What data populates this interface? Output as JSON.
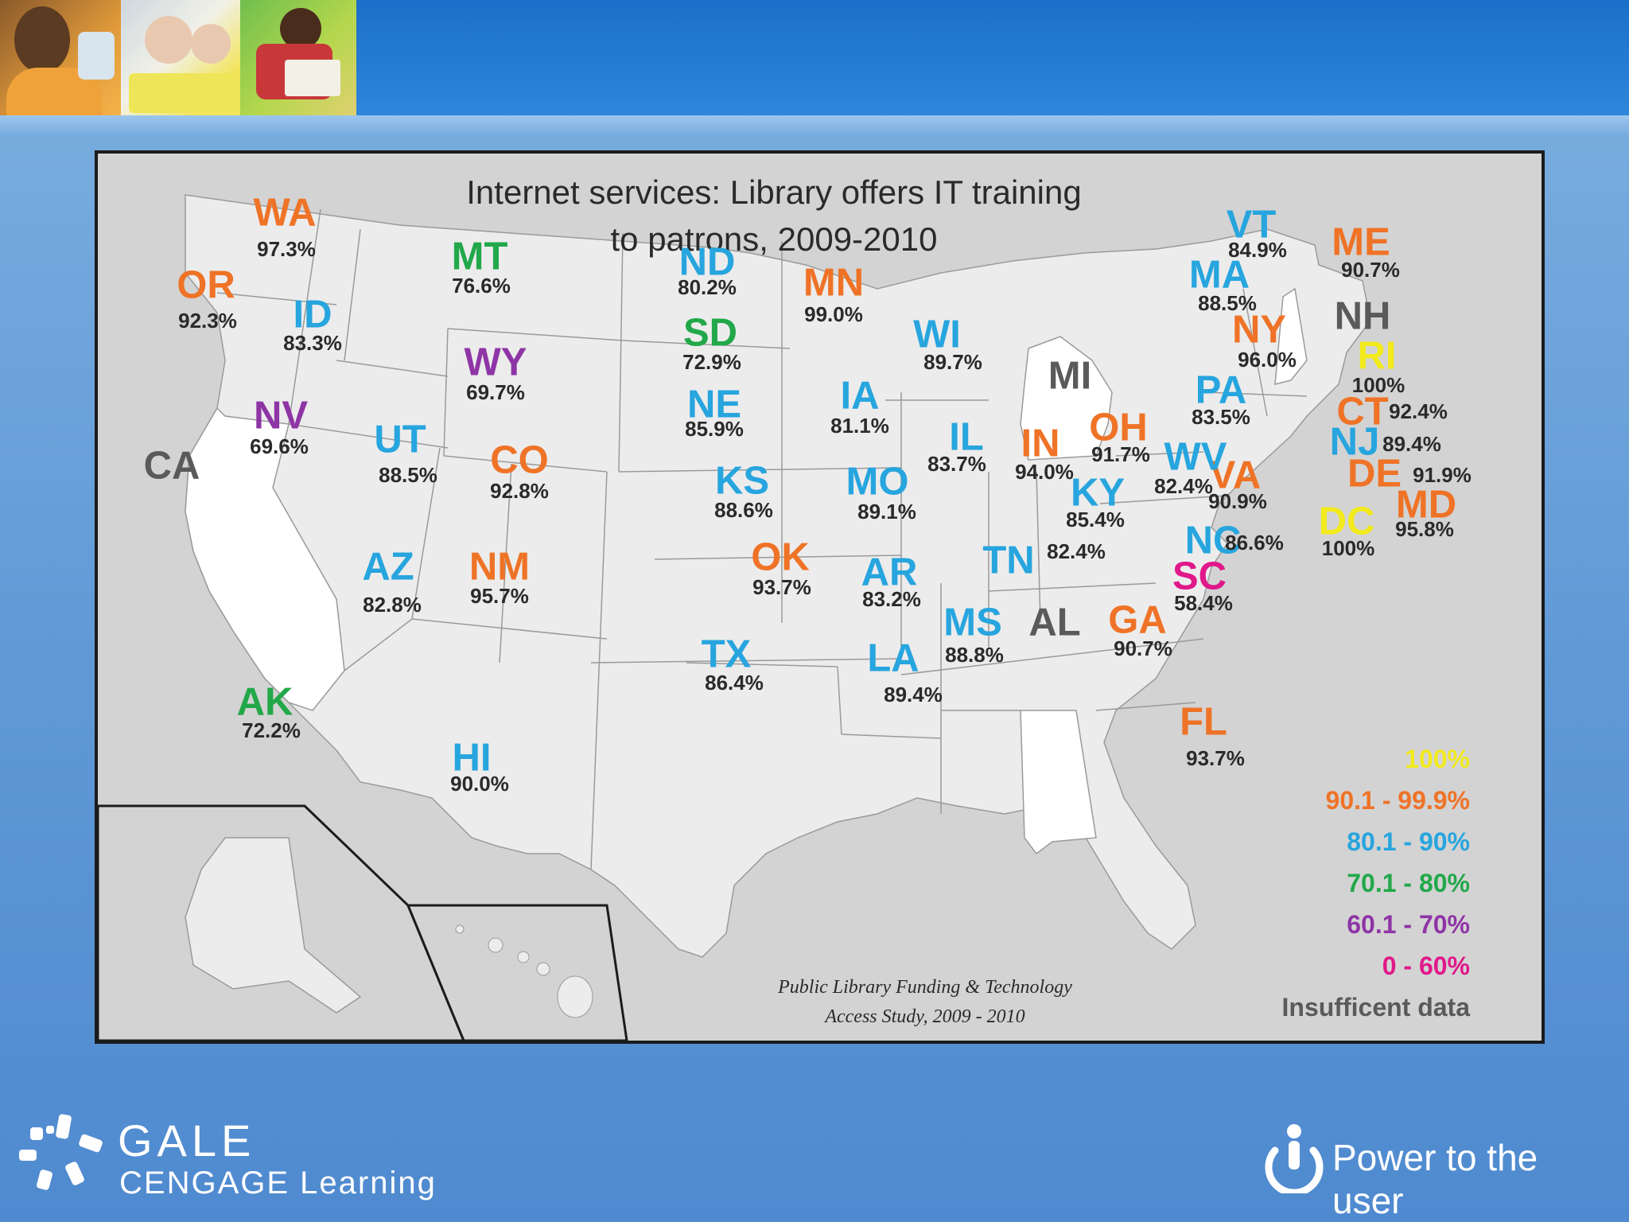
{
  "map": {
    "title_line1": "Internet services: Library offers IT training",
    "title_line2": "to patrons, 2009-2010",
    "source_line1": "Public Library Funding & Technology",
    "source_line2": "Access Study, 2009 - 2010"
  },
  "colors": {
    "band_100": "#f2ea1c",
    "band_90": "#ef7327",
    "band_80": "#27a5de",
    "band_70": "#22a84a",
    "band_60": "#8e35a6",
    "band_0": "#e0188a",
    "insufficient": "#5a5a5a"
  },
  "legend": [
    {
      "label": "100%",
      "color": "#f2ea1c"
    },
    {
      "label": "90.1 - 99.9%",
      "color": "#ef7327"
    },
    {
      "label": "80.1 - 90%",
      "color": "#27a5de"
    },
    {
      "label": "70.1 - 80%",
      "color": "#22a84a"
    },
    {
      "label": "60.1 - 70%",
      "color": "#8e35a6"
    },
    {
      "label": "0 - 60%",
      "color": "#e0188a"
    },
    {
      "label": "Insufficent data",
      "color": "#5a5a5a"
    }
  ],
  "states": [
    {
      "abbr": "WA",
      "value": "97.3%"
    },
    {
      "abbr": "OR",
      "value": "92.3%"
    },
    {
      "abbr": "CA",
      "value": ""
    },
    {
      "abbr": "ID",
      "value": "83.3%"
    },
    {
      "abbr": "NV",
      "value": "69.6%"
    },
    {
      "abbr": "MT",
      "value": "76.6%"
    },
    {
      "abbr": "WY",
      "value": "69.7%"
    },
    {
      "abbr": "UT",
      "value": "88.5%"
    },
    {
      "abbr": "AZ",
      "value": "82.8%"
    },
    {
      "abbr": "CO",
      "value": "92.8%"
    },
    {
      "abbr": "NM",
      "value": "95.7%"
    },
    {
      "abbr": "ND",
      "value": "80.2%"
    },
    {
      "abbr": "SD",
      "value": "72.9%"
    },
    {
      "abbr": "NE",
      "value": "85.9%"
    },
    {
      "abbr": "KS",
      "value": "88.6%"
    },
    {
      "abbr": "OK",
      "value": "93.7%"
    },
    {
      "abbr": "TX",
      "value": "86.4%"
    },
    {
      "abbr": "MN",
      "value": "99.0%"
    },
    {
      "abbr": "IA",
      "value": "81.1%"
    },
    {
      "abbr": "MO",
      "value": "89.1%"
    },
    {
      "abbr": "AR",
      "value": "83.2%"
    },
    {
      "abbr": "LA",
      "value": "89.4%"
    },
    {
      "abbr": "WI",
      "value": "89.7%"
    },
    {
      "abbr": "IL",
      "value": "83.7%"
    },
    {
      "abbr": "MI",
      "value": ""
    },
    {
      "abbr": "IN",
      "value": "94.0%"
    },
    {
      "abbr": "OH",
      "value": "91.7%"
    },
    {
      "abbr": "KY",
      "value": "85.4%"
    },
    {
      "abbr": "TN",
      "value": "82.4%"
    },
    {
      "abbr": "MS",
      "value": "88.8%"
    },
    {
      "abbr": "AL",
      "value": ""
    },
    {
      "abbr": "GA",
      "value": "90.7%"
    },
    {
      "abbr": "FL",
      "value": "93.7%"
    },
    {
      "abbr": "SC",
      "value": "58.4%"
    },
    {
      "abbr": "NC",
      "value": "86.6%"
    },
    {
      "abbr": "VA",
      "value": "90.9%"
    },
    {
      "abbr": "WV",
      "value": "82.4%"
    },
    {
      "abbr": "PA",
      "value": "83.5%"
    },
    {
      "abbr": "NY",
      "value": "96.0%"
    },
    {
      "abbr": "VT",
      "value": "84.9%"
    },
    {
      "abbr": "ME",
      "value": "90.7%"
    },
    {
      "abbr": "MA",
      "value": "88.5%"
    },
    {
      "abbr": "NH",
      "value": ""
    },
    {
      "abbr": "RI",
      "value": "100%"
    },
    {
      "abbr": "CT",
      "value": "92.4%"
    },
    {
      "abbr": "NJ",
      "value": "89.4%"
    },
    {
      "abbr": "DE",
      "value": "91.9%"
    },
    {
      "abbr": "MD",
      "value": "95.8%"
    },
    {
      "abbr": "DC",
      "value": "100%"
    },
    {
      "abbr": "AK",
      "value": "72.2%"
    },
    {
      "abbr": "HI",
      "value": "90.0%"
    }
  ],
  "footer": {
    "brand_line1": "GALE",
    "brand_line2": "CENGAGE Learning",
    "tagline": "Power to the user"
  }
}
